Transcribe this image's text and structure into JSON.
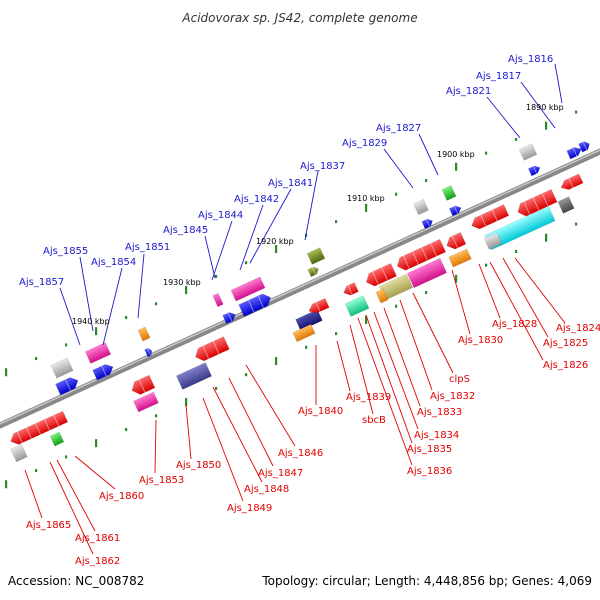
{
  "title": "Acidovorax sp. JS42, complete genome",
  "footer": {
    "accession": "Accession: NC_008782",
    "topology": "Topology: circular; Length: 4,448,856 bp; Genes: 4,069"
  },
  "colors": {
    "backbone": "#777777",
    "top_label": "#1a1acc",
    "bottom_label": "#e00000",
    "tick": "#2a8a2a"
  },
  "scale_marks": [
    "1890 kbp",
    "1900 kbp",
    "1910 kbp",
    "1920 kbp",
    "1930 kbp",
    "1940 kbp"
  ],
  "genes_top": [
    "Ajs_1816",
    "Ajs_1817",
    "Ajs_1821",
    "Ajs_1827",
    "Ajs_1829",
    "Ajs_1837",
    "Ajs_1841",
    "Ajs_1842",
    "Ajs_1844",
    "Ajs_1845",
    "Ajs_1851",
    "Ajs_1855",
    "Ajs_1854",
    "Ajs_1857"
  ],
  "genes_bottom": [
    "Ajs_1824",
    "Ajs_1825",
    "Ajs_1826",
    "Ajs_1828",
    "Ajs_1830",
    "clpS",
    "Ajs_1832",
    "Ajs_1833",
    "Ajs_1834",
    "Ajs_1835",
    "Ajs_1836",
    "sbcB",
    "Ajs_1839",
    "Ajs_1840",
    "Ajs_1846",
    "Ajs_1847",
    "Ajs_1848",
    "Ajs_1849",
    "Ajs_1850",
    "Ajs_1853",
    "Ajs_1860",
    "Ajs_1861",
    "Ajs_1862",
    "Ajs_1865"
  ]
}
